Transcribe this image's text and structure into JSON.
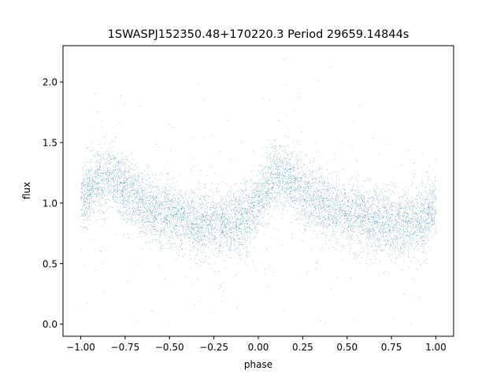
{
  "chart_data": {
    "type": "scatter",
    "title": "1SWASPJ152350.48+170220.3 Period 29659.14844s",
    "xlabel": "phase",
    "ylabel": "flux",
    "xlim": [
      -1.1,
      1.1
    ],
    "ylim": [
      -0.1,
      2.3
    ],
    "x_ticks": [
      -1.0,
      -0.75,
      -0.5,
      -0.25,
      0.0,
      0.25,
      0.5,
      0.75,
      1.0
    ],
    "x_tick_labels": [
      "−1.00",
      "−0.75",
      "−0.50",
      "−0.25",
      "0.00",
      "0.25",
      "0.50",
      "0.75",
      "1.00"
    ],
    "y_ticks": [
      0.0,
      0.5,
      1.0,
      1.5,
      2.0
    ],
    "y_tick_labels": [
      "0.0",
      "0.5",
      "1.0",
      "1.5",
      "2.0"
    ],
    "grid": false,
    "series": [
      {
        "color": "#1f77b4",
        "x": [
          -1.0,
          -0.95,
          -0.9,
          -0.85,
          -0.8,
          -0.75,
          -0.7,
          -0.65,
          -0.6,
          -0.55,
          -0.5,
          -0.45,
          -0.4,
          -0.35,
          -0.3,
          -0.25,
          -0.2,
          -0.15,
          -0.1,
          -0.05,
          0.0,
          0.05,
          0.1,
          0.15,
          0.2,
          0.25,
          0.3,
          0.35,
          0.4,
          0.45,
          0.5,
          0.55,
          0.6,
          0.65,
          0.7,
          0.75,
          0.8,
          0.85,
          0.9,
          0.95,
          1.0
        ],
        "y": [
          1.0,
          1.12,
          1.2,
          1.22,
          1.18,
          1.12,
          1.06,
          1.0,
          0.96,
          0.92,
          0.9,
          0.88,
          0.86,
          0.84,
          0.83,
          0.82,
          0.82,
          0.84,
          0.86,
          0.9,
          0.98,
          1.12,
          1.22,
          1.2,
          1.15,
          1.1,
          1.05,
          1.0,
          0.96,
          0.92,
          0.9,
          0.88,
          0.86,
          0.84,
          0.83,
          0.82,
          0.82,
          0.84,
          0.86,
          0.9,
          0.98
        ]
      }
    ]
  }
}
